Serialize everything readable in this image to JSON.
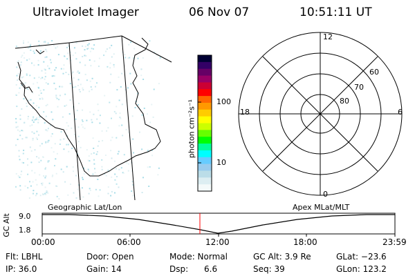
{
  "header": {
    "instrument": "Ultraviolet Imager",
    "date": "06 Nov 07",
    "time": "10:51:11 UT"
  },
  "colorbar": {
    "unit_label": "photon cm⁻²s⁻¹",
    "tick_labels": [
      "100",
      "10"
    ],
    "colors": [
      "#000033",
      "#330066",
      "#660066",
      "#990066",
      "#cc0033",
      "#ff0000",
      "#ff6600",
      "#ff9900",
      "#ffcc00",
      "#ffff00",
      "#ccff00",
      "#66ff00",
      "#00ff00",
      "#00ff99",
      "#00ffff",
      "#66ccff",
      "#99ccee",
      "#bbdde8",
      "#ddeef2",
      "#f4fafa"
    ]
  },
  "polar": {
    "mlt_labels": {
      "top": "12",
      "left": "18",
      "right": "6",
      "bottom": "0"
    },
    "lat_labels": [
      "60",
      "70",
      "80"
    ]
  },
  "timeline": {
    "title_left": "Geographic Lat/Lon",
    "title_right": "Apex MLat/MLT",
    "axis_label": "GC Alt",
    "y_max": "9.0",
    "y_min": "1.8",
    "time_ticks": [
      "00:00",
      "06:00",
      "12:00",
      "18:00",
      "23:59"
    ],
    "marker_color": "#ff0000"
  },
  "status": {
    "flt": "Flt: LBHL",
    "ip": "IP: 36.0",
    "door": "Door: Open",
    "gain": "Gain: 14",
    "mode": "Mode: Normal",
    "dsp": "Dsp:      6.6",
    "gc_alt": "GC Alt: 3.9 Re",
    "seq": "Seq: 39",
    "glat": "GLat: −23.6",
    "glon": "GLon: 123.2"
  }
}
